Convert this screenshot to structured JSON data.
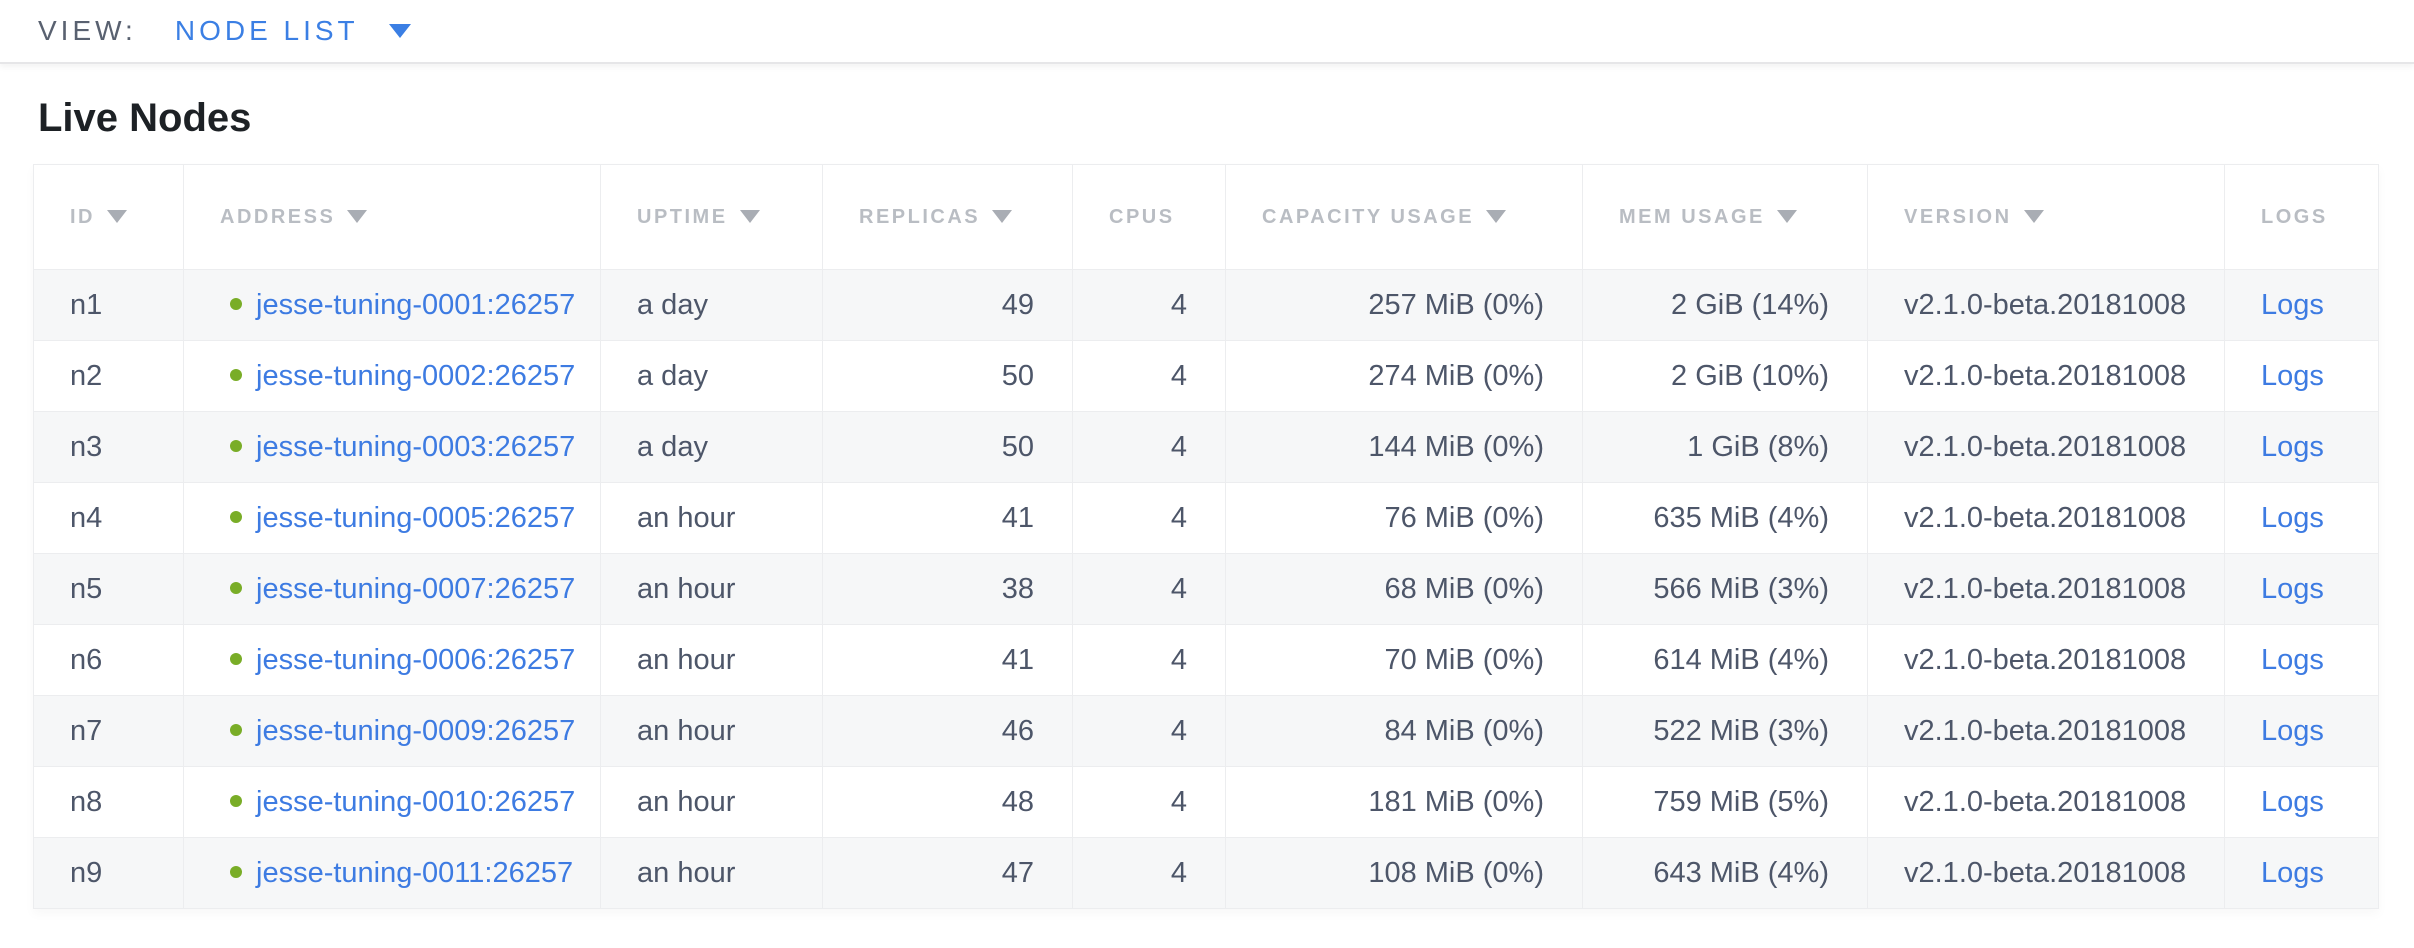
{
  "view_bar": {
    "label": "VIEW:",
    "selected": "NODE LIST"
  },
  "title": "Live Nodes",
  "colors": {
    "link_blue": "#3d7be2",
    "dropdown_blue": "#3b7fe4",
    "live_dot_green": "#79ad27",
    "header_gray": "#b9bdc3",
    "cell_text": "#4d5669"
  },
  "table": {
    "columns": [
      {
        "key": "id",
        "label": "ID",
        "sortable": true,
        "align": "left"
      },
      {
        "key": "address",
        "label": "ADDRESS",
        "sortable": true,
        "align": "left"
      },
      {
        "key": "uptime",
        "label": "UPTIME",
        "sortable": true,
        "align": "left"
      },
      {
        "key": "replicas",
        "label": "REPLICAS",
        "sortable": true,
        "align": "right"
      },
      {
        "key": "cpus",
        "label": "CPUS",
        "sortable": false,
        "align": "right"
      },
      {
        "key": "capacity_usage",
        "label": "CAPACITY USAGE",
        "sortable": true,
        "align": "right"
      },
      {
        "key": "mem_usage",
        "label": "MEM USAGE",
        "sortable": true,
        "align": "right"
      },
      {
        "key": "version",
        "label": "VERSION",
        "sortable": true,
        "align": "left"
      },
      {
        "key": "logs",
        "label": "LOGS",
        "sortable": false,
        "align": "left"
      }
    ],
    "rows": [
      {
        "id": "n1",
        "status": "live",
        "address": "jesse-tuning-0001:26257",
        "uptime": "a day",
        "replicas": "49",
        "cpus": "4",
        "capacity_usage": "257 MiB (0%)",
        "mem_usage": "2 GiB (14%)",
        "version": "v2.1.0-beta.20181008",
        "logs": "Logs"
      },
      {
        "id": "n2",
        "status": "live",
        "address": "jesse-tuning-0002:26257",
        "uptime": "a day",
        "replicas": "50",
        "cpus": "4",
        "capacity_usage": "274 MiB (0%)",
        "mem_usage": "2 GiB (10%)",
        "version": "v2.1.0-beta.20181008",
        "logs": "Logs"
      },
      {
        "id": "n3",
        "status": "live",
        "address": "jesse-tuning-0003:26257",
        "uptime": "a day",
        "replicas": "50",
        "cpus": "4",
        "capacity_usage": "144 MiB (0%)",
        "mem_usage": "1 GiB (8%)",
        "version": "v2.1.0-beta.20181008",
        "logs": "Logs"
      },
      {
        "id": "n4",
        "status": "live",
        "address": "jesse-tuning-0005:26257",
        "uptime": "an hour",
        "replicas": "41",
        "cpus": "4",
        "capacity_usage": "76 MiB (0%)",
        "mem_usage": "635 MiB (4%)",
        "version": "v2.1.0-beta.20181008",
        "logs": "Logs"
      },
      {
        "id": "n5",
        "status": "live",
        "address": "jesse-tuning-0007:26257",
        "uptime": "an hour",
        "replicas": "38",
        "cpus": "4",
        "capacity_usage": "68 MiB (0%)",
        "mem_usage": "566 MiB (3%)",
        "version": "v2.1.0-beta.20181008",
        "logs": "Logs"
      },
      {
        "id": "n6",
        "status": "live",
        "address": "jesse-tuning-0006:26257",
        "uptime": "an hour",
        "replicas": "41",
        "cpus": "4",
        "capacity_usage": "70 MiB (0%)",
        "mem_usage": "614 MiB (4%)",
        "version": "v2.1.0-beta.20181008",
        "logs": "Logs"
      },
      {
        "id": "n7",
        "status": "live",
        "address": "jesse-tuning-0009:26257",
        "uptime": "an hour",
        "replicas": "46",
        "cpus": "4",
        "capacity_usage": "84 MiB (0%)",
        "mem_usage": "522 MiB (3%)",
        "version": "v2.1.0-beta.20181008",
        "logs": "Logs"
      },
      {
        "id": "n8",
        "status": "live",
        "address": "jesse-tuning-0010:26257",
        "uptime": "an hour",
        "replicas": "48",
        "cpus": "4",
        "capacity_usage": "181 MiB (0%)",
        "mem_usage": "759 MiB (5%)",
        "version": "v2.1.0-beta.20181008",
        "logs": "Logs"
      },
      {
        "id": "n9",
        "status": "live",
        "address": "jesse-tuning-0011:26257",
        "uptime": "an hour",
        "replicas": "47",
        "cpus": "4",
        "capacity_usage": "108 MiB (0%)",
        "mem_usage": "643 MiB (4%)",
        "version": "v2.1.0-beta.20181008",
        "logs": "Logs"
      }
    ]
  }
}
